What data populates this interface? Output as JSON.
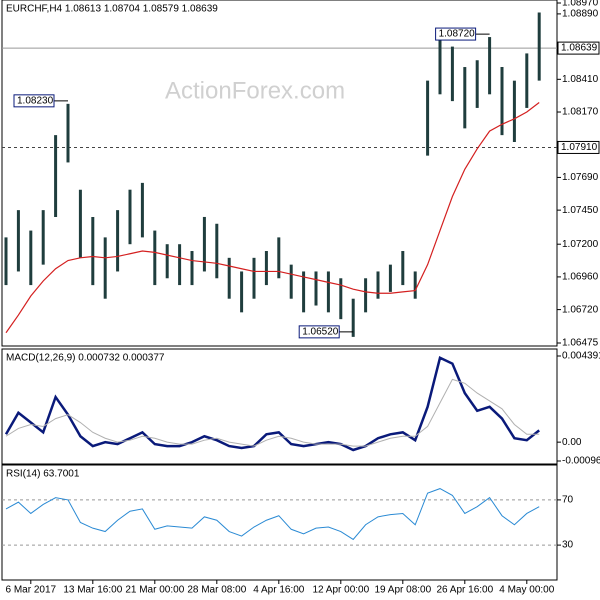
{
  "chart_data": [
    {
      "type": "ohlc",
      "title": "EURCHF,H4 1.08613 1.08704 1.08579 1.08639",
      "watermark": "ActionForex.com",
      "color": "#1f3d3d",
      "high": [
        1.0725,
        1.0745,
        1.073,
        1.0745,
        1.08,
        1.0823,
        1.076,
        1.074,
        1.0725,
        1.0745,
        1.076,
        1.0765,
        1.073,
        1.072,
        1.072,
        1.0715,
        1.074,
        1.0735,
        1.071,
        1.07,
        1.071,
        1.0715,
        1.0725,
        1.0705,
        1.07,
        1.07,
        1.07,
        1.0695,
        1.068,
        1.0695,
        1.07,
        1.0705,
        1.0715,
        1.07,
        1.084,
        1.087,
        1.0865,
        1.085,
        1.0855,
        1.0872,
        1.085,
        1.084,
        1.086,
        1.089
      ],
      "low": [
        1.069,
        1.07,
        1.069,
        1.0705,
        1.074,
        1.078,
        1.071,
        1.069,
        1.068,
        1.07,
        1.072,
        1.0725,
        1.069,
        1.0695,
        1.069,
        1.069,
        1.07,
        1.0695,
        1.068,
        1.067,
        1.068,
        1.069,
        1.0695,
        1.068,
        1.067,
        1.0675,
        1.067,
        1.0665,
        1.0652,
        1.067,
        1.068,
        1.0685,
        1.069,
        1.068,
        1.0785,
        1.083,
        1.0825,
        1.0805,
        1.082,
        1.083,
        1.08,
        1.0795,
        1.082,
        1.084
      ],
      "ma": {
        "color": "#d42020",
        "values": [
          1.0655,
          1.0668,
          1.0682,
          1.0693,
          1.0702,
          1.0708,
          1.071,
          1.0711,
          1.071,
          1.0711,
          1.0713,
          1.0715,
          1.0714,
          1.0712,
          1.071,
          1.0708,
          1.0707,
          1.0706,
          1.0704,
          1.0702,
          1.07,
          1.07,
          1.07,
          1.0698,
          1.0696,
          1.0694,
          1.0692,
          1.069,
          1.0687,
          1.0685,
          1.0684,
          1.0684,
          1.0685,
          1.0686,
          1.0705,
          1.073,
          1.0755,
          1.0775,
          1.079,
          1.0803,
          1.0808,
          1.0812,
          1.0817,
          1.0824
        ]
      },
      "ylim": [
        1.06475,
        1.0897
      ],
      "yticks": [
        {
          "value": 1.0897,
          "label": "1.08970"
        },
        {
          "value": 1.0889,
          "label": "1.08890"
        },
        {
          "value": 1.0841,
          "label": "1.08410"
        },
        {
          "value": 1.0817,
          "label": "1.08170"
        },
        {
          "value": 1.0769,
          "label": "1.07690"
        },
        {
          "value": 1.0745,
          "label": "1.07450"
        },
        {
          "value": 1.072,
          "label": "1.07200"
        },
        {
          "value": 1.0696,
          "label": "1.06960"
        },
        {
          "value": 1.0672,
          "label": "1.06720"
        },
        1.06475
      ],
      "hlines": [
        {
          "value": 1.0791,
          "label": "1.07910"
        },
        {
          "value": 1.08639,
          "label": "1.08639"
        }
      ],
      "annotations": [
        {
          "index": 5,
          "value": 1.0823,
          "label": "1.08230"
        },
        {
          "index": 39,
          "value": 1.0872,
          "label": "1.08720"
        },
        {
          "index": 28,
          "value": 1.0652,
          "label": "1.06520"
        }
      ]
    },
    {
      "type": "line",
      "title": "MACD(12,26,9) 0.000732 0.000377",
      "series": [
        {
          "color": "#0a1a7a",
          "values": [
            0.0004,
            0.0015,
            0.001,
            0.0005,
            0.0023,
            0.0014,
            0.0003,
            -0.0002,
            0,
            -0.0001,
            0.0002,
            0.0005,
            -0.0001,
            -0.0002,
            -0.0002,
            0,
            0.0003,
            0.0001,
            -0.0002,
            -0.0003,
            -0.0002,
            0.0004,
            0.0005,
            -0.0001,
            -0.0002,
            -0.0001,
            0,
            -0.0001,
            -0.0004,
            -0.0002,
            0.0002,
            0.0004,
            0.0005,
            0.0001,
            0.0018,
            0.0043,
            0.004,
            0.0025,
            0.0016,
            0.0018,
            0.0012,
            0.0002,
            0.0001,
            0.0006
          ]
        },
        {
          "color": "#b0b0b0",
          "values": [
            0.0003,
            0.0007,
            0.0009,
            0.0008,
            0.0012,
            0.0014,
            0.001,
            0.0005,
            0.0002,
            0,
            0.0001,
            0.0003,
            0.0002,
            0,
            -0.0001,
            -0.0001,
            0.0001,
            0.0002,
            0,
            -0.0001,
            -0.0002,
            0.0001,
            0.0003,
            0.0002,
            0,
            -0.0001,
            -0.0001,
            -0.0001,
            -0.0002,
            -0.0002,
            0,
            0.0002,
            0.0003,
            0.0003,
            0.0008,
            0.002,
            0.0032,
            0.003,
            0.0025,
            0.0021,
            0.0017,
            0.0009,
            0.0004,
            0.0004
          ]
        }
      ],
      "ylim": [
        -0.000961,
        0.004391
      ],
      "yticks": [
        0.004391,
        {
          "value": 0,
          "label": "0.00"
        },
        -0.000961
      ]
    },
    {
      "type": "line",
      "title": "RSI(14) 63.7001",
      "series": [
        {
          "color": "#2a8ad4",
          "values": [
            62,
            68,
            58,
            66,
            72,
            70,
            50,
            45,
            42,
            52,
            60,
            62,
            44,
            47,
            46,
            45,
            55,
            52,
            42,
            38,
            46,
            52,
            56,
            44,
            40,
            45,
            46,
            42,
            35,
            48,
            55,
            57,
            58,
            48,
            76,
            80,
            74,
            58,
            64,
            72,
            56,
            48,
            58,
            64
          ]
        }
      ],
      "ylim": [
        0,
        100
      ],
      "yticks": [
        30,
        70
      ],
      "dashed_grid": true,
      "categories": [
        null,
        null,
        "6 Mar 2017",
        null,
        null,
        null,
        null,
        "13 Mar 16:00",
        null,
        null,
        null,
        null,
        "21 Mar 00:00",
        null,
        null,
        null,
        null,
        "28 Mar 08:00",
        null,
        null,
        null,
        null,
        "4 Apr 16:00",
        null,
        null,
        null,
        null,
        "12 Apr 00:00",
        null,
        null,
        null,
        null,
        "19 Apr 08:00",
        null,
        null,
        null,
        null,
        "26 Apr 16:00",
        null,
        null,
        null,
        null,
        "4 May 00:00",
        null
      ]
    }
  ]
}
